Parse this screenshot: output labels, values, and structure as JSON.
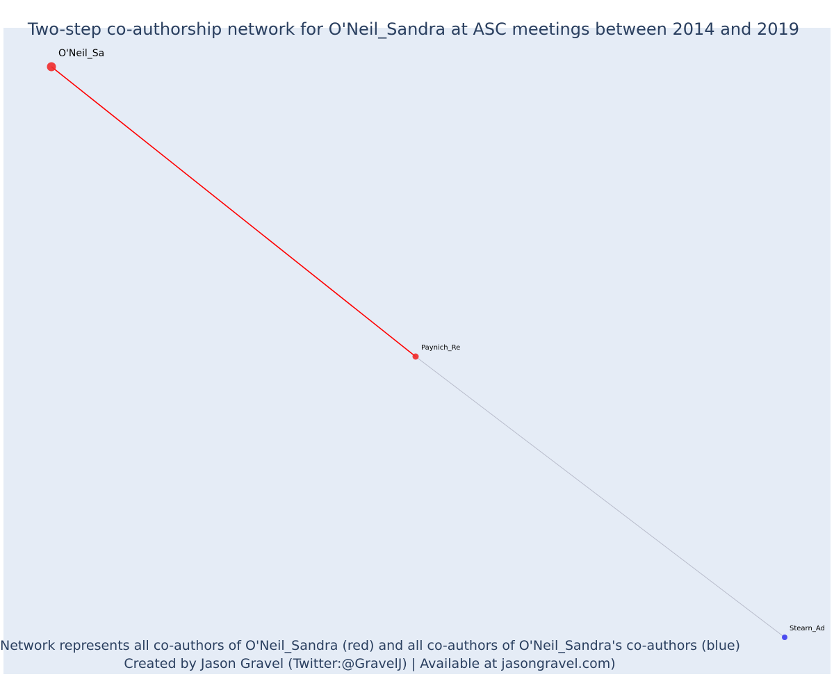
{
  "title": "Two-step co-authorship network for O'Neil_Sandra at ASC meetings between 2014 and 2019",
  "caption": {
    "line1": "Network represents all co-authors of O'Neil_Sandra (red) and all co-authors of O'Neil_Sandra's co-authors (blue)",
    "line2": "Created by Jason Gravel (Twitter:@GravelJ) | Available at jasongravel.com)"
  },
  "colors": {
    "background": "#e5ecf6",
    "focal": "#ef2b2b",
    "coauthor": "#ef2b2b",
    "second_step": "#3b3bef",
    "edge_direct": "#ff0000",
    "edge_indirect": "#b8bccb",
    "text": "#2a3f5f"
  },
  "network": {
    "nodes": [
      {
        "id": "oneil",
        "label": "O'Neil_Sa",
        "group": "focal"
      },
      {
        "id": "paynich",
        "label": "Paynich_Re",
        "group": "coauthor"
      },
      {
        "id": "stearn",
        "label": "Stearn_Ad",
        "group": "second_step"
      }
    ],
    "edges": [
      {
        "source": "oneil",
        "target": "paynich",
        "type": "direct"
      },
      {
        "source": "paynich",
        "target": "stearn",
        "type": "indirect"
      }
    ]
  }
}
